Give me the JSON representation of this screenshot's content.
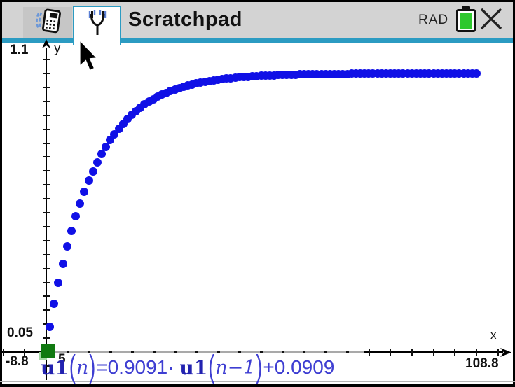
{
  "titlebar": {
    "title": "Scratchpad",
    "angle_mode": "RAD",
    "tabs": [
      {
        "id": "calculator",
        "icon": "calculator-icon",
        "selected": false
      },
      {
        "id": "graph",
        "icon": "graph-parabola-icon",
        "selected": true
      }
    ],
    "battery": {
      "level": "full",
      "color": "#2ec82e"
    },
    "close_label": "close"
  },
  "graph": {
    "axis_labels": {
      "ymax": "1.1",
      "y_tick": "0.05",
      "xmin": "-8.8",
      "xmax": "108.8",
      "x_tick": "5",
      "x_name": "x",
      "y_name": "y"
    },
    "origin_marker": {
      "shape": "green-square",
      "color": "#117a11",
      "at": "initial term (0, 0)"
    },
    "equation": {
      "full_text": "u1(n)=0.9091· u1(n-1)+0.0909",
      "segments": [
        {
          "t": "u1",
          "s": "bold"
        },
        {
          "t": "(",
          "s": "paren"
        },
        {
          "t": "n",
          "s": "ital"
        },
        {
          "t": ")",
          "s": "paren"
        },
        {
          "t": "=0.9091·",
          "s": "plain"
        },
        {
          "t": " ",
          "s": "sp"
        },
        {
          "t": "u1",
          "s": "bold"
        },
        {
          "t": "(",
          "s": "paren"
        },
        {
          "t": "n",
          "s": "ital"
        },
        {
          "t": "−1",
          "s": "ital"
        },
        {
          "t": ")",
          "s": "paren"
        },
        {
          "t": "+0.0909",
          "s": "plain"
        }
      ]
    }
  },
  "chart_data": {
    "type": "scatter",
    "title": "",
    "xlabel": "x",
    "ylabel": "y",
    "xlim": [
      -8.8,
      108.8
    ],
    "ylim": [
      -0.11,
      1.1
    ],
    "x_tick_step": 5,
    "y_tick_step": 0.05,
    "grid": false,
    "legend_position": "none",
    "point_color": "#1010e6",
    "series": [
      {
        "name": "u1",
        "recurrence": "u1(n)=0.9091·u1(n-1)+0.0909",
        "coef_a": 0.9091,
        "coef_b": 0.0909,
        "initial_value": 0,
        "n_start": 1,
        "n_end": 100,
        "limit": 1.0,
        "values_sample_n1_to_n12": [
          0.0909,
          0.1735,
          0.2486,
          0.3169,
          0.379,
          0.4355,
          0.4868,
          0.5335,
          0.5759,
          0.6144,
          0.6495,
          0.6814
        ]
      }
    ],
    "initial_point": {
      "n": 0,
      "value": 0,
      "marker": "green-square"
    }
  }
}
